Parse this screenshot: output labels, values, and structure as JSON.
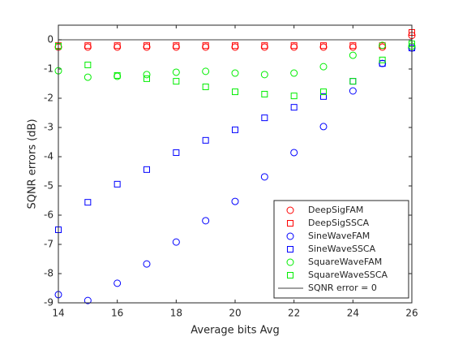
{
  "chart_data": {
    "type": "scatter",
    "xlabel": "Average bits Avg",
    "ylabel": "SQNR errors (dB)",
    "x": [
      14,
      15,
      16,
      17,
      18,
      19,
      20,
      21,
      22,
      23,
      24,
      25,
      26
    ],
    "xlim": [
      14,
      26
    ],
    "xticks": [
      14,
      16,
      18,
      20,
      22,
      24,
      26
    ],
    "ylim": [
      -9,
      0.5
    ],
    "yticks": [
      0,
      -1,
      -2,
      -3,
      -4,
      -5,
      -6,
      -7,
      -8,
      -9
    ],
    "legend": "southeast",
    "series": [
      {
        "name": "DeepSigFAM",
        "color": "#ff0000",
        "marker": "circle",
        "values": [
          -0.25,
          -0.25,
          -0.25,
          -0.25,
          -0.25,
          -0.25,
          -0.25,
          -0.25,
          -0.25,
          -0.25,
          -0.25,
          -0.25,
          0.15
        ]
      },
      {
        "name": "DeepSigSSCA",
        "color": "#ff0000",
        "marker": "square",
        "values": [
          -0.2,
          -0.2,
          -0.2,
          -0.2,
          -0.2,
          -0.2,
          -0.2,
          -0.2,
          -0.2,
          -0.2,
          -0.2,
          -0.2,
          0.25
        ]
      },
      {
        "name": "SineWaveFAM",
        "color": "#0000ff",
        "marker": "circle",
        "values": [
          -8.72,
          -8.92,
          -8.33,
          -7.67,
          -6.92,
          -6.19,
          -5.53,
          -4.69,
          -3.86,
          -2.97,
          -1.75,
          -0.81,
          -0.28
        ]
      },
      {
        "name": "SineWaveSSCA",
        "color": "#0000ff",
        "marker": "square",
        "values": [
          -6.5,
          -5.56,
          -4.94,
          -4.44,
          -3.86,
          -3.44,
          -3.08,
          -2.67,
          -2.31,
          -1.94,
          -1.42,
          -0.81,
          -0.28
        ]
      },
      {
        "name": "SquareWaveFAM",
        "color": "#00ee00",
        "marker": "circle",
        "values": [
          -1.06,
          -1.28,
          -1.25,
          -1.19,
          -1.11,
          -1.08,
          -1.14,
          -1.19,
          -1.14,
          -0.92,
          -0.53,
          -0.19,
          -0.22
        ]
      },
      {
        "name": "SquareWaveSSCA",
        "color": "#00ee00",
        "marker": "square",
        "values": [
          -0.22,
          -0.86,
          -1.22,
          -1.33,
          -1.42,
          -1.61,
          -1.78,
          -1.86,
          -1.92,
          -1.78,
          -1.42,
          -0.69,
          -0.14
        ]
      },
      {
        "name": "SQNR error = 0",
        "color": "#000000",
        "marker": "line",
        "values": [
          0,
          0,
          0,
          0,
          0,
          0,
          0,
          0,
          0,
          0,
          0,
          0,
          0
        ]
      }
    ]
  }
}
